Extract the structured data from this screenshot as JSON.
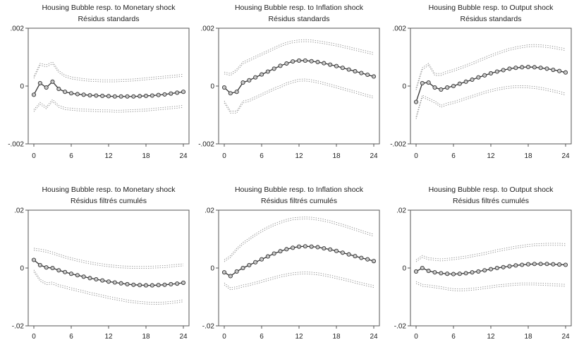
{
  "figure": {
    "background": "#ffffff"
  },
  "chart_data": [
    {
      "type": "line",
      "title": "Housing Bubble resp. to Monetary shock",
      "subtitle": "Résidus standards",
      "x": [
        0,
        1,
        2,
        3,
        4,
        5,
        6,
        7,
        8,
        9,
        10,
        11,
        12,
        13,
        14,
        15,
        16,
        17,
        18,
        19,
        20,
        21,
        22,
        23,
        24
      ],
      "ylim": [
        -0.002,
        0.002
      ],
      "yticks": [
        0.002,
        0,
        -0.002
      ],
      "ytick_labels": [
        ".002",
        "0",
        "-.002"
      ],
      "xticks": [
        0,
        6,
        12,
        18,
        24
      ],
      "xtick_labels": [
        "0",
        "6",
        "12",
        "18",
        "24"
      ],
      "series": [
        {
          "role": "response",
          "values": [
            -0.0003,
            0.0001,
            -5e-05,
            0.00015,
            -0.0001,
            -0.0002,
            -0.00025,
            -0.00028,
            -0.0003,
            -0.00032,
            -0.00033,
            -0.00034,
            -0.00035,
            -0.00036,
            -0.00036,
            -0.00036,
            -0.00036,
            -0.00035,
            -0.00034,
            -0.00033,
            -0.00031,
            -0.00029,
            -0.00026,
            -0.00023,
            -0.0002
          ]
        },
        {
          "role": "upper-band",
          "values": [
            0.0003,
            0.00075,
            0.0007,
            0.0008,
            0.0005,
            0.00035,
            0.00028,
            0.00025,
            0.00022,
            0.0002,
            0.00019,
            0.00018,
            0.00018,
            0.00018,
            0.00019,
            0.0002,
            0.00021,
            0.00023,
            0.00025,
            0.00027,
            0.00029,
            0.00031,
            0.00033,
            0.00035,
            0.00037
          ]
        },
        {
          "role": "lower-band",
          "values": [
            -0.00085,
            -0.0006,
            -0.00075,
            -0.0005,
            -0.0007,
            -0.00078,
            -0.0008,
            -0.00082,
            -0.00083,
            -0.00084,
            -0.00085,
            -0.00086,
            -0.00086,
            -0.00087,
            -0.00087,
            -0.00086,
            -0.00085,
            -0.00084,
            -0.00083,
            -0.00081,
            -0.00079,
            -0.00077,
            -0.00075,
            -0.00073,
            -0.0007
          ]
        }
      ]
    },
    {
      "type": "line",
      "title": "Housing Bubble resp. to Inflation shock",
      "subtitle": "Résidus standards",
      "x": [
        0,
        1,
        2,
        3,
        4,
        5,
        6,
        7,
        8,
        9,
        10,
        11,
        12,
        13,
        14,
        15,
        16,
        17,
        18,
        19,
        20,
        21,
        22,
        23,
        24
      ],
      "ylim": [
        -0.002,
        0.002
      ],
      "yticks": [
        0.002,
        0,
        -0.002
      ],
      "ytick_labels": [
        ".002",
        "0",
        "-.002"
      ],
      "xticks": [
        0,
        6,
        12,
        18,
        24
      ],
      "xtick_labels": [
        "0",
        "6",
        "12",
        "18",
        "24"
      ],
      "series": [
        {
          "role": "response",
          "values": [
            -5e-05,
            -0.00025,
            -0.0002,
            0.00012,
            0.0002,
            0.0003,
            0.0004,
            0.0005,
            0.0006,
            0.0007,
            0.00078,
            0.00085,
            0.00088,
            0.00088,
            0.00086,
            0.00083,
            0.00079,
            0.00074,
            0.00069,
            0.00063,
            0.00057,
            0.00051,
            0.00045,
            0.00039,
            0.00033
          ]
        },
        {
          "role": "upper-band",
          "values": [
            0.00045,
            0.0004,
            0.00055,
            0.0008,
            0.0009,
            0.001,
            0.0011,
            0.0012,
            0.0013,
            0.0014,
            0.00148,
            0.00153,
            0.00156,
            0.00157,
            0.00156,
            0.00153,
            0.0015,
            0.00146,
            0.00142,
            0.00137,
            0.00132,
            0.00127,
            0.00122,
            0.00117,
            0.00112
          ]
        },
        {
          "role": "lower-band",
          "values": [
            -0.00055,
            -0.0009,
            -0.0009,
            -0.00055,
            -0.0005,
            -0.0004,
            -0.0003,
            -0.0002,
            -0.0001,
            -2e-05,
            8e-05,
            0.00015,
            0.0002,
            0.00021,
            0.00018,
            0.00014,
            9e-05,
            3e-05,
            -3e-05,
            -9e-05,
            -0.00015,
            -0.00021,
            -0.00027,
            -0.00033,
            -0.00039
          ]
        }
      ]
    },
    {
      "type": "line",
      "title": "Housing Bubble resp. to Output shock",
      "subtitle": "Résidus standards",
      "x": [
        0,
        1,
        2,
        3,
        4,
        5,
        6,
        7,
        8,
        9,
        10,
        11,
        12,
        13,
        14,
        15,
        16,
        17,
        18,
        19,
        20,
        21,
        22,
        23,
        24
      ],
      "ylim": [
        -0.002,
        0.002
      ],
      "yticks": [
        0.002,
        0,
        -0.002
      ],
      "ytick_labels": [
        ".002",
        "0",
        "-.002"
      ],
      "xticks": [
        0,
        6,
        12,
        18,
        24
      ],
      "xtick_labels": [
        "0",
        "6",
        "12",
        "18",
        "24"
      ],
      "series": [
        {
          "role": "response",
          "values": [
            -0.00055,
            0.0001,
            0.00012,
            -5e-05,
            -0.00012,
            -5e-05,
            0.0,
            8e-05,
            0.00015,
            0.00022,
            0.0003,
            0.00037,
            0.00044,
            0.0005,
            0.00055,
            0.0006,
            0.00063,
            0.00065,
            0.00066,
            0.00065,
            0.00063,
            0.0006,
            0.00056,
            0.00052,
            0.00047
          ]
        },
        {
          "role": "upper-band",
          "values": [
            -0.0001,
            0.0006,
            0.00075,
            0.0004,
            0.0004,
            0.00048,
            0.00054,
            0.00062,
            0.0007,
            0.00078,
            0.00087,
            0.00096,
            0.00105,
            0.00113,
            0.0012,
            0.00127,
            0.00132,
            0.00136,
            0.00139,
            0.0014,
            0.00139,
            0.00137,
            0.00134,
            0.0013,
            0.00126
          ]
        },
        {
          "role": "lower-band",
          "values": [
            -0.0011,
            -0.00035,
            -0.00045,
            -0.00055,
            -0.0007,
            -0.00062,
            -0.00057,
            -0.0005,
            -0.00043,
            -0.00036,
            -0.00029,
            -0.00022,
            -0.00016,
            -0.00011,
            -7e-05,
            -4e-05,
            -2e-05,
            -2e-05,
            -3e-05,
            -5e-05,
            -8e-05,
            -0.00012,
            -0.00017,
            -0.00022,
            -0.00028
          ]
        }
      ]
    },
    {
      "type": "line",
      "title": "Housing Bubble resp. to Monetary shock",
      "subtitle": "Résidus filtrés cumulés",
      "x": [
        0,
        1,
        2,
        3,
        4,
        5,
        6,
        7,
        8,
        9,
        10,
        11,
        12,
        13,
        14,
        15,
        16,
        17,
        18,
        19,
        20,
        21,
        22,
        23,
        24
      ],
      "ylim": [
        -0.02,
        0.02
      ],
      "yticks": [
        0.02,
        0,
        -0.02
      ],
      "ytick_labels": [
        ".02",
        "0",
        "-.02"
      ],
      "xticks": [
        0,
        6,
        12,
        18,
        24
      ],
      "xtick_labels": [
        "0",
        "6",
        "12",
        "18",
        "24"
      ],
      "series": [
        {
          "role": "response",
          "values": [
            0.0028,
            0.001,
            0.0002,
            0.0,
            -0.0008,
            -0.0014,
            -0.002,
            -0.0025,
            -0.003,
            -0.0035,
            -0.0039,
            -0.0043,
            -0.0047,
            -0.005,
            -0.0053,
            -0.0056,
            -0.0058,
            -0.0059,
            -0.006,
            -0.006,
            -0.0059,
            -0.0058,
            -0.0056,
            -0.0054,
            -0.0051
          ]
        },
        {
          "role": "upper-band",
          "values": [
            0.0065,
            0.0062,
            0.0058,
            0.0052,
            0.0045,
            0.0038,
            0.0032,
            0.0027,
            0.0022,
            0.0018,
            0.0014,
            0.0011,
            0.0008,
            0.0006,
            0.0004,
            0.0003,
            0.0002,
            0.0002,
            0.0002,
            0.0003,
            0.0004,
            0.0005,
            0.0007,
            0.0009,
            0.0011
          ]
        },
        {
          "role": "lower-band",
          "values": [
            -0.001,
            -0.0042,
            -0.0054,
            -0.0052,
            -0.0061,
            -0.0066,
            -0.0072,
            -0.0077,
            -0.0082,
            -0.0088,
            -0.0092,
            -0.0097,
            -0.0102,
            -0.0106,
            -0.011,
            -0.0114,
            -0.0117,
            -0.0119,
            -0.0121,
            -0.0122,
            -0.0122,
            -0.0121,
            -0.0119,
            -0.0117,
            -0.0113
          ]
        }
      ]
    },
    {
      "type": "line",
      "title": "Housing Bubble resp. to Inflation shock",
      "subtitle": "Résidus filtrés cumulés",
      "x": [
        0,
        1,
        2,
        3,
        4,
        5,
        6,
        7,
        8,
        9,
        10,
        11,
        12,
        13,
        14,
        15,
        16,
        17,
        18,
        19,
        20,
        21,
        22,
        23,
        24
      ],
      "ylim": [
        -0.02,
        0.02
      ],
      "yticks": [
        0.02,
        0,
        -0.02
      ],
      "ytick_labels": [
        ".02",
        "0",
        "-.02"
      ],
      "xticks": [
        0,
        6,
        12,
        18,
        24
      ],
      "xtick_labels": [
        "0",
        "6",
        "12",
        "18",
        "24"
      ],
      "series": [
        {
          "role": "response",
          "values": [
            -0.0015,
            -0.0028,
            -0.0012,
            0.0,
            0.001,
            0.002,
            0.003,
            0.004,
            0.005,
            0.0058,
            0.0065,
            0.007,
            0.0074,
            0.0075,
            0.0074,
            0.0072,
            0.0068,
            0.0064,
            0.0059,
            0.0053,
            0.0047,
            0.0041,
            0.0035,
            0.003,
            0.0024
          ]
        },
        {
          "role": "upper-band",
          "values": [
            0.0025,
            0.004,
            0.0065,
            0.0085,
            0.01,
            0.0115,
            0.0128,
            0.014,
            0.015,
            0.0158,
            0.0165,
            0.017,
            0.0172,
            0.0173,
            0.0172,
            0.0169,
            0.0165,
            0.016,
            0.0154,
            0.0148,
            0.0141,
            0.0134,
            0.0127,
            0.012,
            0.0113
          ]
        },
        {
          "role": "lower-band",
          "values": [
            -0.0055,
            -0.0072,
            -0.0068,
            -0.0062,
            -0.0058,
            -0.0052,
            -0.0046,
            -0.004,
            -0.0034,
            -0.0028,
            -0.0024,
            -0.002,
            -0.0018,
            -0.0017,
            -0.0018,
            -0.002,
            -0.0024,
            -0.0028,
            -0.0033,
            -0.0038,
            -0.0043,
            -0.0049,
            -0.0054,
            -0.0059,
            -0.0064
          ]
        }
      ]
    },
    {
      "type": "line",
      "title": "Housing Bubble resp. to Output shock",
      "subtitle": "Résidus filtrés cumulés",
      "x": [
        0,
        1,
        2,
        3,
        4,
        5,
        6,
        7,
        8,
        9,
        10,
        11,
        12,
        13,
        14,
        15,
        16,
        17,
        18,
        19,
        20,
        21,
        22,
        23,
        24
      ],
      "ylim": [
        -0.02,
        0.02
      ],
      "yticks": [
        0.02,
        0,
        -0.02
      ],
      "ytick_labels": [
        ".02",
        "0",
        "-.02"
      ],
      "xticks": [
        0,
        6,
        12,
        18,
        24
      ],
      "xtick_labels": [
        "0",
        "6",
        "12",
        "18",
        "24"
      ],
      "series": [
        {
          "role": "response",
          "values": [
            -0.0012,
            0.0,
            -0.001,
            -0.0015,
            -0.0018,
            -0.002,
            -0.0021,
            -0.002,
            -0.0018,
            -0.0015,
            -0.0012,
            -0.0008,
            -0.0004,
            0.0,
            0.0003,
            0.0006,
            0.0009,
            0.0011,
            0.0013,
            0.0014,
            0.0014,
            0.0014,
            0.0013,
            0.0012,
            0.0011
          ]
        },
        {
          "role": "upper-band",
          "values": [
            0.0025,
            0.004,
            0.0032,
            0.003,
            0.0028,
            0.003,
            0.0032,
            0.0035,
            0.0038,
            0.0042,
            0.0046,
            0.005,
            0.0055,
            0.006,
            0.0064,
            0.0068,
            0.0072,
            0.0075,
            0.0078,
            0.008,
            0.0081,
            0.0082,
            0.0082,
            0.0082,
            0.0081
          ]
        },
        {
          "role": "lower-band",
          "values": [
            -0.005,
            -0.006,
            -0.0062,
            -0.0065,
            -0.0068,
            -0.0072,
            -0.0075,
            -0.0076,
            -0.0075,
            -0.0073,
            -0.0071,
            -0.0068,
            -0.0065,
            -0.0062,
            -0.006,
            -0.0058,
            -0.0056,
            -0.0055,
            -0.0055,
            -0.0055,
            -0.0056,
            -0.0057,
            -0.0058,
            -0.0059,
            -0.006
          ]
        }
      ]
    }
  ]
}
